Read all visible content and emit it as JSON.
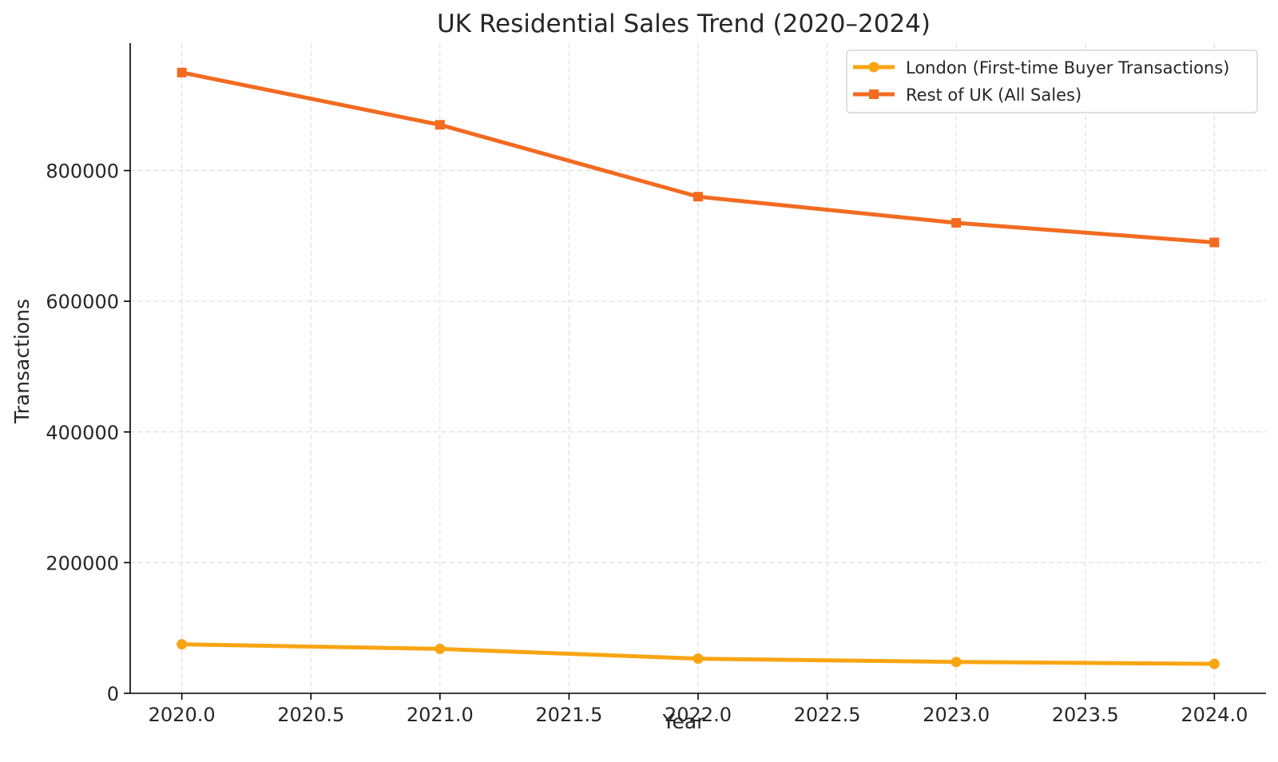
{
  "chart_data": {
    "type": "line",
    "title": "UK Residential Sales Trend (2020–2024)",
    "xlabel": "Year",
    "ylabel": "Transactions",
    "x": [
      2020,
      2021,
      2022,
      2023,
      2024
    ],
    "xlim": [
      2019.8,
      2024.2
    ],
    "ylim": [
      0,
      995000
    ],
    "xticks": [
      2020.0,
      2020.5,
      2021.0,
      2021.5,
      2022.0,
      2022.5,
      2023.0,
      2023.5,
      2024.0
    ],
    "xtick_labels": [
      "2020.0",
      "2020.5",
      "2021.0",
      "2021.5",
      "2022.0",
      "2022.5",
      "2023.0",
      "2023.5",
      "2024.0"
    ],
    "yticks": [
      0,
      200000,
      400000,
      600000,
      800000
    ],
    "ytick_labels": [
      "0",
      "200000",
      "400000",
      "600000",
      "800000"
    ],
    "grid": true,
    "legend_position": "top-right",
    "series": [
      {
        "name": "London (First-time Buyer Transactions)",
        "values": [
          75000,
          68000,
          53000,
          48000,
          45000
        ],
        "color": "#F9A512",
        "marker": "circle"
      },
      {
        "name": "Rest of UK (All Sales)",
        "values": [
          950000,
          870000,
          760000,
          720000,
          690000
        ],
        "color": "#F26B21",
        "marker": "square"
      }
    ]
  }
}
